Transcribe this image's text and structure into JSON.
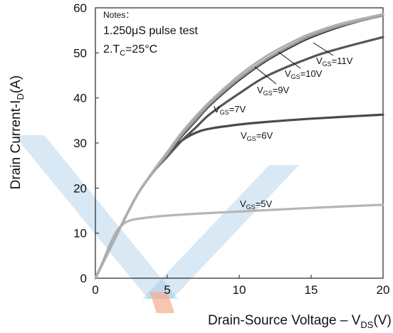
{
  "chart_data": {
    "type": "line",
    "title": "",
    "xlabel": {
      "main": "Drain-Source Voltage –  V",
      "sub": "DS",
      "tail": "(V)"
    },
    "ylabel": {
      "main": "Drain Current-I",
      "sub": "D",
      "tail": "(A)"
    },
    "xlim": [
      0,
      20
    ],
    "ylim": [
      0,
      60
    ],
    "xticks": [
      "0",
      "5",
      "10",
      "15",
      "20"
    ],
    "yticks": [
      "0",
      "10",
      "20",
      "30",
      "40",
      "50",
      "60"
    ],
    "grid": false,
    "notes": {
      "header": "Notes：",
      "line1": "1.250μS pulse test",
      "line2_main": "2.T",
      "line2_sub": "C",
      "line2_tail": "=25°C"
    },
    "series": [
      {
        "name": "VGS=5V",
        "label_main": "V",
        "label_sub": "GS",
        "label_tail": "=5V",
        "color": "#b5b5b5",
        "x": [
          0,
          0.5,
          1,
          1.5,
          2,
          2.5,
          3,
          4,
          5,
          7,
          10,
          15,
          20
        ],
        "y": [
          0,
          3.5,
          7.5,
          10.5,
          12.2,
          12.9,
          13.2,
          13.6,
          13.9,
          14.3,
          14.8,
          15.6,
          16.3
        ]
      },
      {
        "name": "VGS=6V",
        "label_main": "V",
        "label_sub": "GS",
        "label_tail": "=6V",
        "color": "#4a4a4a",
        "x": [
          0,
          1,
          2,
          3,
          4,
          5,
          6,
          7,
          8,
          10,
          12,
          15,
          20
        ],
        "y": [
          0,
          6.5,
          13,
          19,
          23.5,
          27.5,
          30.5,
          32.3,
          33.2,
          34.1,
          34.7,
          35.4,
          36.3
        ]
      },
      {
        "name": "VGS=7V",
        "label_main": "V",
        "label_sub": "GS",
        "label_tail": "=7V",
        "color": "#555555",
        "x": [
          0,
          1,
          2,
          3,
          4,
          5,
          6,
          7,
          8,
          10,
          12,
          15,
          17,
          20
        ],
        "y": [
          0,
          6.5,
          13,
          19,
          23.5,
          27,
          30.5,
          33.5,
          36.5,
          41,
          45,
          49,
          51,
          53.5
        ]
      },
      {
        "name": "VGS=9V",
        "label_main": "V",
        "label_sub": "GS",
        "label_tail": "=9V",
        "color": "#3a3a3a",
        "x": [
          0,
          1,
          2,
          3,
          4,
          5,
          6,
          7,
          8,
          10,
          12,
          14,
          15,
          17,
          20
        ],
        "y": [
          0,
          6.5,
          13,
          19,
          23.5,
          27.5,
          31.5,
          35,
          38.5,
          44,
          48.5,
          52,
          53.5,
          55.8,
          58.5
        ]
      },
      {
        "name": "VGS=10V",
        "label_main": "V",
        "label_sub": "GS",
        "label_tail": "=10V",
        "color": "#9a9a9a",
        "x": [
          0,
          1,
          2,
          3,
          4,
          5,
          6,
          7,
          8,
          10,
          12,
          14,
          15,
          17,
          20
        ],
        "y": [
          0,
          6.5,
          13,
          19,
          23.5,
          27.5,
          31.8,
          35.3,
          38.8,
          44.3,
          48.8,
          52.3,
          53.8,
          56,
          58.3
        ]
      },
      {
        "name": "VGS=11V",
        "label_main": "V",
        "label_sub": "GS",
        "label_tail": "=11V",
        "color": "#b0b0b0",
        "x": [
          0,
          1,
          2,
          3,
          4,
          5,
          6,
          7,
          8,
          10,
          12,
          14,
          15,
          17,
          20
        ],
        "y": [
          0,
          6.5,
          13,
          19,
          23.7,
          28,
          32.3,
          36,
          39.3,
          45,
          49.5,
          52.9,
          54.3,
          56.4,
          58.6
        ]
      }
    ]
  }
}
